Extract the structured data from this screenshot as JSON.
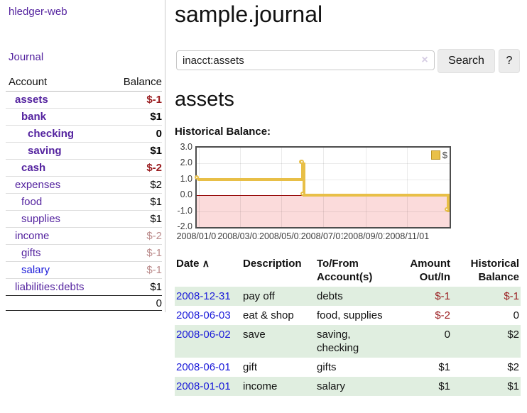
{
  "app": {
    "title": "hledger-web"
  },
  "sidebar": {
    "journal_link": "Journal",
    "account_header": "Account",
    "balance_header": "Balance",
    "accounts": [
      {
        "name": "assets",
        "balance": "$-1",
        "indent": 1,
        "bold": true,
        "name_color": "purple",
        "balance_color": "neg"
      },
      {
        "name": "bank",
        "balance": "$1",
        "indent": 2,
        "bold": true,
        "name_color": "purple",
        "balance_color": ""
      },
      {
        "name": "checking",
        "balance": "0",
        "indent": 3,
        "bold": true,
        "name_color": "purple",
        "balance_color": ""
      },
      {
        "name": "saving",
        "balance": "$1",
        "indent": 3,
        "bold": true,
        "name_color": "purple",
        "balance_color": ""
      },
      {
        "name": "cash",
        "balance": "$-2",
        "indent": 2,
        "bold": true,
        "name_color": "purple",
        "balance_color": "neg"
      },
      {
        "name": "expenses",
        "balance": "$2",
        "indent": 1,
        "bold": false,
        "name_color": "purple",
        "balance_color": ""
      },
      {
        "name": "food",
        "balance": "$1",
        "indent": 2,
        "bold": false,
        "name_color": "purple",
        "balance_color": ""
      },
      {
        "name": "supplies",
        "balance": "$1",
        "indent": 2,
        "bold": false,
        "name_color": "purple",
        "balance_color": ""
      },
      {
        "name": "income",
        "balance": "$-2",
        "indent": 1,
        "bold": false,
        "name_color": "purple",
        "balance_color": "neg-dim"
      },
      {
        "name": "gifts",
        "balance": "$-1",
        "indent": 2,
        "bold": false,
        "name_color": "purple",
        "balance_color": "neg-dim"
      },
      {
        "name": "salary",
        "balance": "$-1",
        "indent": 2,
        "bold": false,
        "name_color": "blue",
        "balance_color": "neg-dim"
      },
      {
        "name": "liabilities:debts",
        "balance": "$1",
        "indent": 1,
        "bold": false,
        "name_color": "purple",
        "balance_color": ""
      }
    ],
    "total": "0"
  },
  "header": {
    "title": "sample.journal"
  },
  "search": {
    "value": "inacct:assets",
    "clear_icon": "×",
    "button_label": "Search",
    "help_label": "?"
  },
  "account_page": {
    "heading": "assets",
    "chart_title": "Historical Balance:"
  },
  "chart_data": {
    "type": "line",
    "style": "step",
    "title": "Historical Balance",
    "legend": "$",
    "legend_position": "top-right",
    "series": [
      {
        "name": "$",
        "color": "#e8bf47",
        "points": [
          [
            "2008-01-01",
            1
          ],
          [
            "2008-06-01",
            2
          ],
          [
            "2008-06-02",
            2
          ],
          [
            "2008-06-03",
            0
          ],
          [
            "2008-12-31",
            -1
          ]
        ]
      }
    ],
    "y_ticks": [
      3.0,
      2.0,
      1.0,
      0.0,
      -1.0,
      -2.0
    ],
    "x_ticks": [
      "2008/01/01",
      "2008/03/01",
      "2008/05/01",
      "2008/07/01",
      "2008/09/01",
      "2008/11/01"
    ],
    "ylim": [
      -2,
      3
    ],
    "xlim": [
      "2007-12-29",
      "2009-01-02"
    ],
    "grid": true,
    "negative_region_color": "#fbdbdb",
    "zero_line_color": "#990f0f"
  },
  "transactions": {
    "headers": {
      "date": "Date",
      "sort_arrow": "∧",
      "description": "Description",
      "tofrom": "To/From Account(s)",
      "amount": "Amount Out/In",
      "balance": "Historical Balance"
    },
    "rows": [
      {
        "date": "2008-12-31",
        "description": "pay off",
        "accounts": "debts",
        "amount": "$-1",
        "balance": "$-1",
        "amount_neg": true,
        "balance_neg": true,
        "shaded": true
      },
      {
        "date": "2008-06-03",
        "description": "eat & shop",
        "accounts": "food, supplies",
        "amount": "$-2",
        "balance": "0",
        "amount_neg": true,
        "balance_neg": false,
        "shaded": false
      },
      {
        "date": "2008-06-02",
        "description": "save",
        "accounts": "saving, checking",
        "amount": "0",
        "balance": "$2",
        "amount_neg": false,
        "balance_neg": false,
        "shaded": true
      },
      {
        "date": "2008-06-01",
        "description": "gift",
        "accounts": "gifts",
        "amount": "$1",
        "balance": "$2",
        "amount_neg": false,
        "balance_neg": false,
        "shaded": false
      },
      {
        "date": "2008-01-01",
        "description": "income",
        "accounts": "salary",
        "amount": "$1",
        "balance": "$1",
        "amount_neg": false,
        "balance_neg": false,
        "shaded": true
      }
    ]
  }
}
